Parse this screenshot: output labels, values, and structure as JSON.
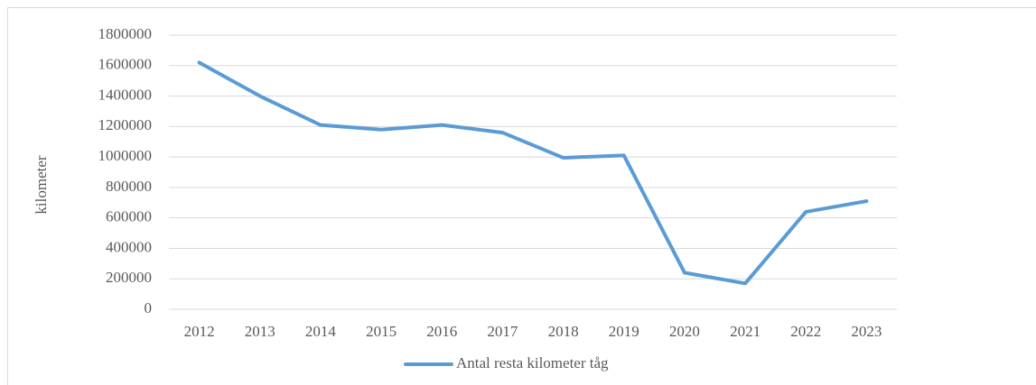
{
  "chart_data": {
    "type": "line",
    "y_label": "kilometer",
    "categories": [
      "2012",
      "2013",
      "2014",
      "2015",
      "2016",
      "2017",
      "2018",
      "2019",
      "2020",
      "2021",
      "2022",
      "2023"
    ],
    "series": [
      {
        "name": "Antal resta kilometer tåg",
        "color": "#5b9bd5",
        "values": [
          1620000,
          1400000,
          1210000,
          1180000,
          1210000,
          1160000,
          995000,
          1010000,
          240000,
          170000,
          640000,
          710000
        ]
      }
    ],
    "ylim": [
      0,
      1800000
    ],
    "yticks": [
      0,
      200000,
      400000,
      600000,
      800000,
      1000000,
      1200000,
      1400000,
      1600000,
      1800000
    ],
    "grid": true,
    "legend": "bottom"
  }
}
